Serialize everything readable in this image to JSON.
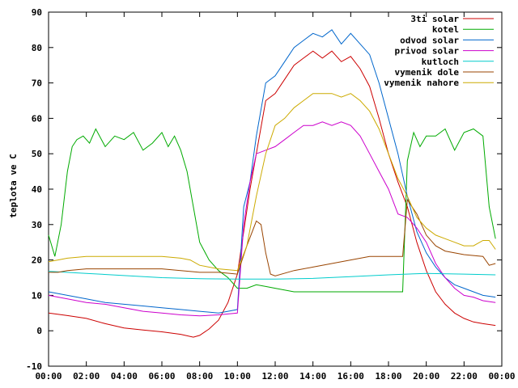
{
  "chart_data": {
    "type": "line",
    "title": "",
    "xlabel": "",
    "ylabel": "teplota ve C",
    "ylim": [
      -10,
      90
    ],
    "xlim": [
      "00:00",
      "24:00"
    ],
    "grid": false,
    "legend_position": "top-right",
    "y_ticks": [
      "-10",
      "0",
      "10",
      "20",
      "30",
      "40",
      "50",
      "60",
      "70",
      "80",
      "90"
    ],
    "x_ticks": [
      "00:00",
      "02:00",
      "04:00",
      "06:00",
      "08:00",
      "10:00",
      "12:00",
      "14:00",
      "16:00",
      "18:00",
      "20:00",
      "22:00",
      "00:00"
    ],
    "series": [
      {
        "name": "3ti solar",
        "color": "#cc0000",
        "x": [
          "00:00",
          "01:00",
          "02:00",
          "03:00",
          "04:00",
          "05:00",
          "06:00",
          "07:00",
          "07:40",
          "08:00",
          "08:30",
          "09:00",
          "09:30",
          "10:00",
          "10:20",
          "10:40",
          "11:00",
          "11:30",
          "12:00",
          "12:30",
          "13:00",
          "13:30",
          "14:00",
          "14:30",
          "15:00",
          "15:30",
          "16:00",
          "16:30",
          "17:00",
          "17:30",
          "18:00",
          "18:30",
          "19:00",
          "19:30",
          "20:00",
          "20:30",
          "21:00",
          "21:30",
          "22:00",
          "22:30",
          "23:00",
          "23:40"
        ],
        "y": [
          5,
          4.3,
          3.5,
          2,
          0.8,
          0.2,
          -0.3,
          -1,
          -1.8,
          -1.3,
          0.5,
          3,
          8,
          16,
          28,
          40,
          50,
          65,
          67,
          71,
          75,
          77,
          79,
          77,
          79,
          76,
          77.5,
          74,
          69,
          60,
          50,
          42,
          35,
          25,
          17,
          11,
          7.5,
          5,
          3.5,
          2.5,
          2,
          1.5
        ]
      },
      {
        "name": "kotel",
        "color": "#00aa00",
        "x": [
          "00:00",
          "00:20",
          "00:40",
          "01:00",
          "01:15",
          "01:30",
          "01:50",
          "02:10",
          "02:30",
          "03:00",
          "03:30",
          "04:00",
          "04:30",
          "05:00",
          "05:30",
          "06:00",
          "06:20",
          "06:40",
          "07:00",
          "07:20",
          "07:40",
          "08:00",
          "08:30",
          "09:00",
          "09:30",
          "10:00",
          "10:30",
          "11:00",
          "11:30",
          "12:00",
          "13:00",
          "14:00",
          "15:00",
          "16:00",
          "17:00",
          "18:00",
          "18:45",
          "19:00",
          "19:20",
          "19:40",
          "20:00",
          "20:30",
          "21:00",
          "21:30",
          "22:00",
          "22:30",
          "23:00",
          "23:20",
          "23:40"
        ],
        "y": [
          27,
          21,
          30,
          45,
          52,
          54,
          55,
          53,
          57,
          52,
          55,
          54,
          56,
          51,
          53,
          56,
          52,
          55,
          51,
          45,
          35,
          25,
          20,
          17,
          15,
          12,
          12,
          13,
          12.5,
          12,
          11,
          11,
          11,
          11,
          11,
          11,
          11,
          48,
          56,
          52,
          55,
          55,
          57,
          51,
          56,
          57,
          55,
          35,
          26
        ]
      },
      {
        "name": "odvod solar",
        "color": "#0066cc",
        "x": [
          "00:00",
          "01:00",
          "02:00",
          "03:00",
          "04:00",
          "05:00",
          "06:00",
          "07:00",
          "08:00",
          "09:00",
          "09:30",
          "10:00",
          "10:20",
          "10:40",
          "11:00",
          "11:30",
          "12:00",
          "12:30",
          "13:00",
          "13:30",
          "14:00",
          "14:30",
          "15:00",
          "15:30",
          "16:00",
          "16:30",
          "17:00",
          "17:30",
          "18:00",
          "18:30",
          "19:00",
          "19:30",
          "20:00",
          "20:30",
          "21:00",
          "21:30",
          "22:00",
          "22:30",
          "23:00",
          "23:40"
        ],
        "y": [
          11,
          10,
          9,
          8,
          7.5,
          7,
          6.5,
          6,
          5.5,
          5,
          5.5,
          6,
          35,
          42,
          55,
          70,
          72,
          76,
          80,
          82,
          84,
          83,
          85,
          81,
          84,
          81,
          78,
          70,
          60,
          50,
          38,
          28,
          22,
          18,
          15,
          13,
          12,
          11,
          10,
          9.5
        ]
      },
      {
        "name": "privod solar",
        "color": "#cc00cc",
        "x": [
          "00:00",
          "01:00",
          "02:00",
          "03:00",
          "04:00",
          "05:00",
          "06:00",
          "07:00",
          "08:00",
          "09:00",
          "10:00",
          "10:20",
          "10:40",
          "11:00",
          "11:30",
          "12:00",
          "12:30",
          "13:00",
          "13:30",
          "14:00",
          "14:30",
          "15:00",
          "15:30",
          "16:00",
          "16:30",
          "17:00",
          "17:30",
          "18:00",
          "18:30",
          "19:00",
          "19:30",
          "20:00",
          "20:30",
          "21:00",
          "21:30",
          "22:00",
          "22:30",
          "23:00",
          "23:40"
        ],
        "y": [
          10,
          9,
          8,
          7.5,
          6.5,
          5.5,
          5,
          4.5,
          4.2,
          4.5,
          5,
          30,
          42,
          50,
          51,
          52,
          54,
          56,
          58,
          58,
          59,
          58,
          59,
          58,
          55,
          50,
          45,
          40,
          33,
          32,
          29,
          25,
          19,
          15,
          12,
          10,
          9.5,
          8.5,
          8
        ]
      },
      {
        "name": "kutloch",
        "color": "#00cccc",
        "x": [
          "00:00",
          "02:00",
          "04:00",
          "06:00",
          "08:00",
          "10:00",
          "12:00",
          "14:00",
          "16:00",
          "18:00",
          "20:00",
          "22:00",
          "23:40"
        ],
        "y": [
          16.8,
          16.2,
          15.6,
          15,
          14.7,
          14.6,
          14.6,
          14.8,
          15.3,
          15.8,
          16.2,
          16,
          15.8
        ]
      },
      {
        "name": "vymenik dole",
        "color": "#994400",
        "x": [
          "00:00",
          "00:30",
          "01:00",
          "02:00",
          "03:00",
          "04:00",
          "05:00",
          "06:00",
          "07:00",
          "08:00",
          "09:00",
          "10:00",
          "10:30",
          "11:00",
          "11:15",
          "11:30",
          "11:45",
          "12:00",
          "13:00",
          "14:00",
          "15:00",
          "16:00",
          "17:00",
          "18:00",
          "18:45",
          "19:00",
          "19:30",
          "20:00",
          "20:30",
          "21:00",
          "22:00",
          "23:00",
          "23:20",
          "23:40"
        ],
        "y": [
          16.5,
          16.5,
          17,
          17.5,
          17.5,
          17.5,
          17.5,
          17.5,
          17,
          16.5,
          16.5,
          16,
          24,
          31,
          30,
          22,
          16,
          15.5,
          17,
          18,
          19,
          20,
          21,
          21,
          21,
          37,
          33,
          27,
          24,
          22.5,
          21.5,
          21,
          18.5,
          19
        ]
      },
      {
        "name": "vymenik nahore",
        "color": "#ccaa00",
        "x": [
          "00:00",
          "00:30",
          "01:00",
          "02:00",
          "03:00",
          "04:00",
          "05:00",
          "06:00",
          "07:00",
          "07:30",
          "08:00",
          "09:00",
          "10:00",
          "10:30",
          "11:00",
          "11:30",
          "12:00",
          "12:30",
          "13:00",
          "13:30",
          "14:00",
          "14:30",
          "15:00",
          "15:30",
          "16:00",
          "16:30",
          "17:00",
          "17:30",
          "18:00",
          "18:30",
          "19:00",
          "19:30",
          "20:00",
          "20:30",
          "21:00",
          "21:30",
          "22:00",
          "22:30",
          "23:00",
          "23:20",
          "23:40"
        ],
        "y": [
          19.5,
          20,
          20.5,
          21,
          21,
          21,
          21,
          21,
          20.5,
          20,
          18.5,
          17.5,
          17,
          24,
          38,
          50,
          58,
          60,
          63,
          65,
          67,
          67,
          67,
          66,
          67,
          65,
          62,
          57,
          50,
          43,
          38,
          32,
          29,
          27,
          26,
          25,
          24,
          24,
          25.5,
          25.5,
          23
        ]
      }
    ]
  }
}
